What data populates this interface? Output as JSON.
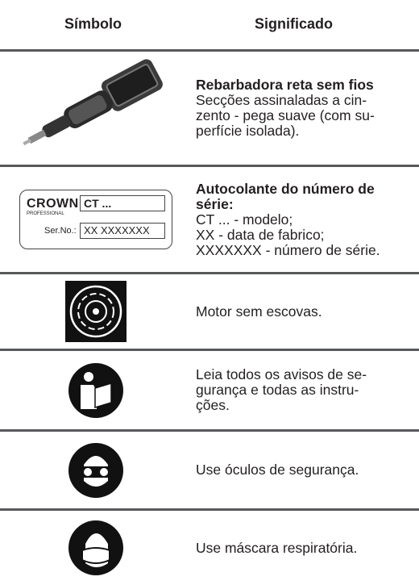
{
  "table": {
    "header": [
      "Símbolo",
      "Significado"
    ],
    "rows": [
      {
        "title_lines": [
          "Rebarbadora reta sem fios"
        ],
        "lines": [
          "Secções assinaladas a cin-",
          "zento - pega suave (com su-",
          "perfície isolada)."
        ]
      },
      {
        "title_lines": [
          "Autocolante do número de",
          "série:"
        ],
        "lines": [
          "CT ... - modelo;",
          "XX - data de fabrico;",
          "XXXXXXX - número de série."
        ],
        "label": {
          "brand": "CROWN",
          "sub": "PROFESSIONAL",
          "model": "CT ...",
          "serial_label": "Ser.No.:",
          "serial": "XX XXXXXXX"
        }
      },
      {
        "lines": [
          "Motor sem escovas."
        ]
      },
      {
        "lines": [
          "Leia todos os avisos de se-",
          "gurança e todas as instru-",
          "ções."
        ]
      },
      {
        "lines": [
          "Use óculos de segurança."
        ]
      },
      {
        "lines": [
          "Use máscara respiratória."
        ]
      }
    ]
  }
}
